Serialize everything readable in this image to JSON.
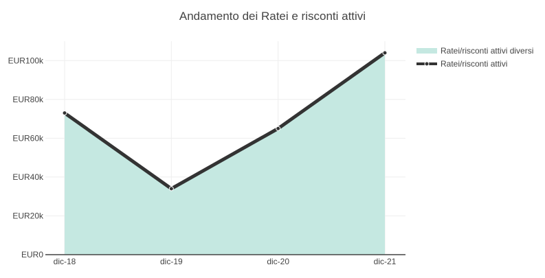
{
  "chart_data": {
    "type": "area",
    "title": "Andamento dei Ratei e risconti attivi",
    "xlabel": "",
    "ylabel": "",
    "categories": [
      "dic-18",
      "dic-19",
      "dic-20",
      "dic-21"
    ],
    "yticks": [
      "EUR0",
      "EUR20k",
      "EUR40k",
      "EUR60k",
      "EUR80k",
      "EUR100k"
    ],
    "ytick_values": [
      0,
      20000,
      40000,
      60000,
      80000,
      100000
    ],
    "ylim": [
      0,
      110000
    ],
    "grid": true,
    "legend_position": "top-right",
    "series": [
      {
        "name": "Ratei/risconti attivi diversi",
        "kind": "area",
        "color": "#c5e8e1",
        "values": [
          73000,
          34000,
          65000,
          104000
        ]
      },
      {
        "name": "Ratei/risconti attivi",
        "kind": "line",
        "color": "#333333",
        "values": [
          73000,
          34000,
          65000,
          104000
        ]
      }
    ]
  }
}
